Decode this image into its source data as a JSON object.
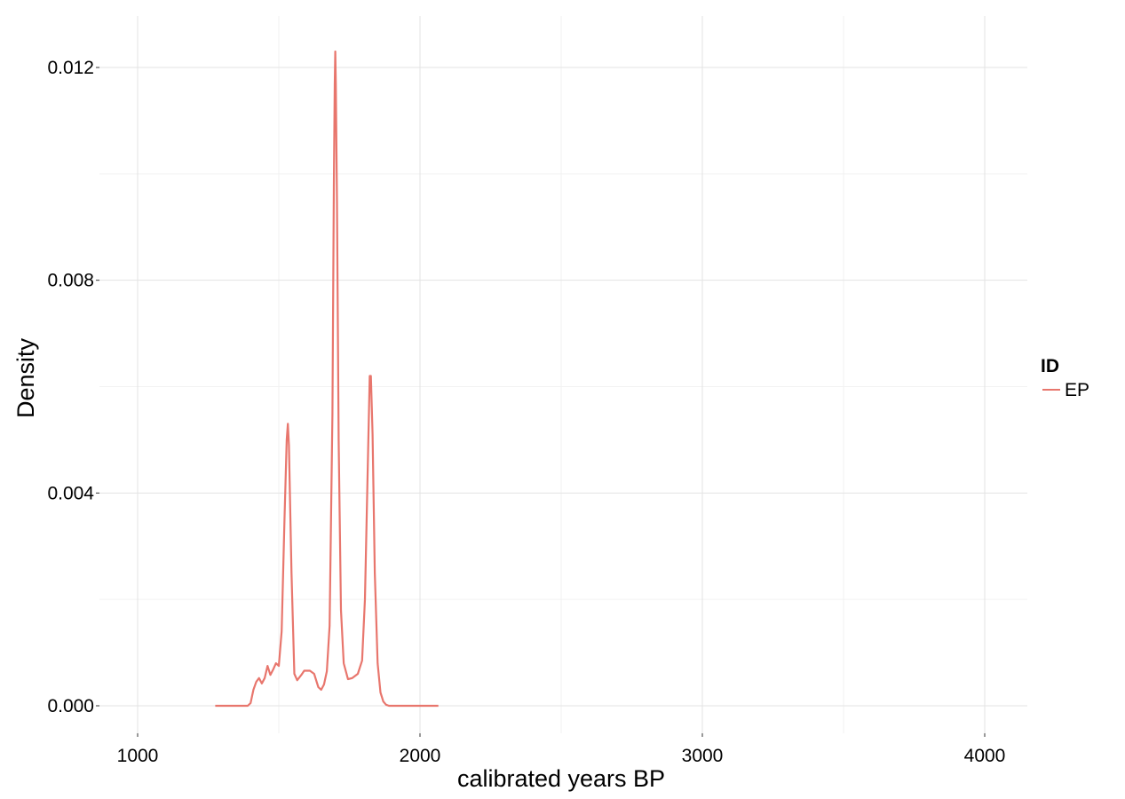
{
  "chart_data": {
    "type": "line",
    "title": "",
    "xlabel": "calibrated years BP",
    "ylabel": "Density",
    "xlim": [
      1000,
      4000
    ],
    "ylim": [
      0,
      0.0123
    ],
    "x_ticks": [
      1000,
      2000,
      3000,
      4000
    ],
    "x_tick_labels": [
      "1000",
      "2000",
      "3000",
      "4000"
    ],
    "y_ticks": [
      0,
      0.004,
      0.008,
      0.012
    ],
    "y_tick_labels": [
      "0.000",
      "0.004",
      "0.008",
      "0.012"
    ],
    "grid": true,
    "legend": {
      "title": "ID",
      "position": "right"
    },
    "series": [
      {
        "name": "EP",
        "color": "#e8766d",
        "points": [
          [
            1275,
            0
          ],
          [
            1300,
            0
          ],
          [
            1350,
            0
          ],
          [
            1390,
            0
          ],
          [
            1400,
            5e-05
          ],
          [
            1410,
            0.0003
          ],
          [
            1420,
            0.00045
          ],
          [
            1430,
            0.00052
          ],
          [
            1440,
            0.00042
          ],
          [
            1450,
            0.00052
          ],
          [
            1460,
            0.00075
          ],
          [
            1470,
            0.00058
          ],
          [
            1480,
            0.00068
          ],
          [
            1490,
            0.0008
          ],
          [
            1500,
            0.00075
          ],
          [
            1510,
            0.0014
          ],
          [
            1520,
            0.0035
          ],
          [
            1528,
            0.005
          ],
          [
            1532,
            0.0053
          ],
          [
            1536,
            0.0049
          ],
          [
            1545,
            0.0025
          ],
          [
            1555,
            0.0006
          ],
          [
            1565,
            0.00048
          ],
          [
            1580,
            0.00058
          ],
          [
            1590,
            0.00066
          ],
          [
            1610,
            0.00066
          ],
          [
            1625,
            0.0006
          ],
          [
            1640,
            0.00035
          ],
          [
            1650,
            0.0003
          ],
          [
            1660,
            0.0004
          ],
          [
            1670,
            0.00065
          ],
          [
            1680,
            0.0015
          ],
          [
            1690,
            0.0055
          ],
          [
            1695,
            0.0098
          ],
          [
            1698,
            0.0117
          ],
          [
            1700,
            0.0123
          ],
          [
            1702,
            0.0117
          ],
          [
            1706,
            0.0095
          ],
          [
            1712,
            0.005
          ],
          [
            1720,
            0.0018
          ],
          [
            1730,
            0.0008
          ],
          [
            1745,
            0.0005
          ],
          [
            1760,
            0.00052
          ],
          [
            1780,
            0.0006
          ],
          [
            1795,
            0.00085
          ],
          [
            1805,
            0.002
          ],
          [
            1815,
            0.0045
          ],
          [
            1822,
            0.0062
          ],
          [
            1826,
            0.0062
          ],
          [
            1832,
            0.0051
          ],
          [
            1840,
            0.0025
          ],
          [
            1850,
            0.0008
          ],
          [
            1860,
            0.00025
          ],
          [
            1870,
            8e-05
          ],
          [
            1880,
            2e-05
          ],
          [
            1890,
            0
          ],
          [
            1950,
            0
          ],
          [
            2000,
            0
          ],
          [
            2065,
            0
          ]
        ]
      }
    ]
  }
}
